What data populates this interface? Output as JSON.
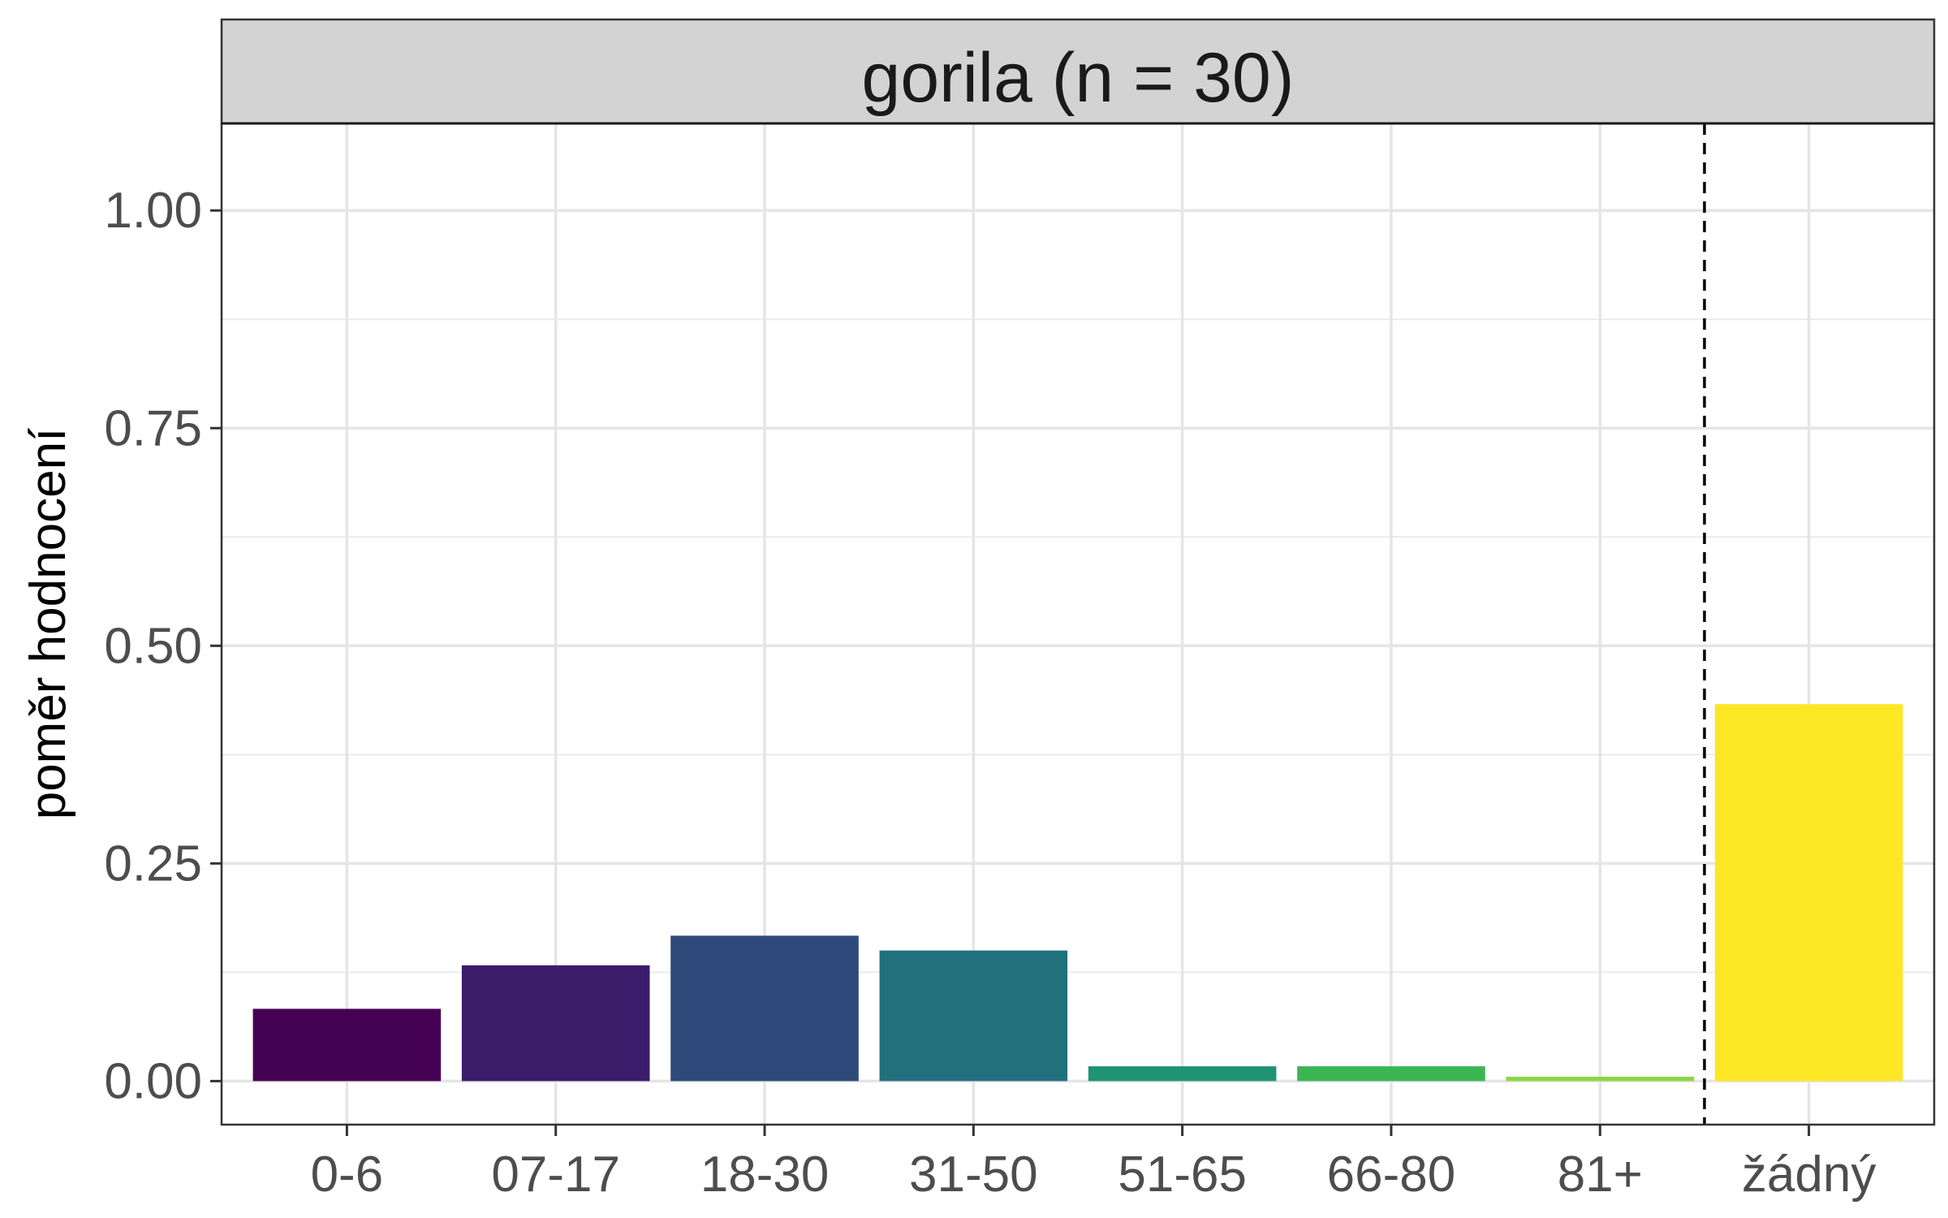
{
  "chart_data": {
    "type": "bar",
    "panel_title": "gorila (n = 30)",
    "ylabel": "poměr hodnocení",
    "xlabel": "",
    "categories": [
      "0-6",
      "07-17",
      "18-30",
      "31-50",
      "51-65",
      "66-80",
      "81+",
      "žádný"
    ],
    "values": [
      0.083,
      0.133,
      0.167,
      0.15,
      0.017,
      0.017,
      0.005,
      0.433
    ],
    "colors": [
      "#440154",
      "#3b1c6b",
      "#2d4a7a",
      "#21707d",
      "#1f9374",
      "#3bb552",
      "#8cd643",
      "#fde725"
    ],
    "ylim": [
      -0.05,
      1.1
    ],
    "yticks": [
      0.0,
      0.25,
      0.5,
      0.75,
      1.0
    ],
    "ytick_labels": [
      "0.00",
      "0.25",
      "0.50",
      "0.75",
      "1.00"
    ],
    "separator": {
      "style": "dashed",
      "between": [
        "81+",
        "žádný"
      ]
    },
    "grid": true,
    "legend": "none"
  }
}
